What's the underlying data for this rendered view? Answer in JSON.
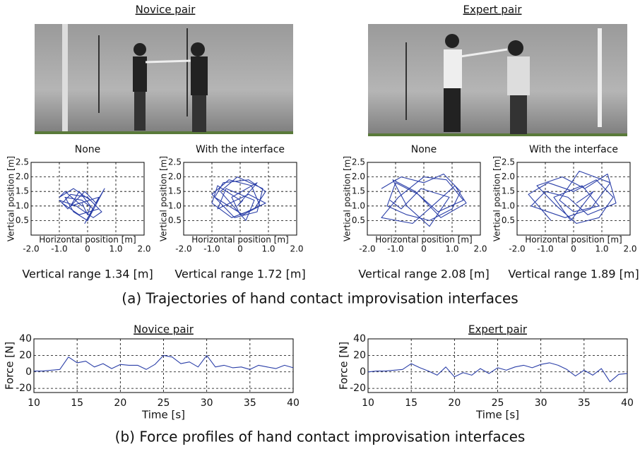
{
  "figure": {
    "photos": [
      {
        "title": "Novice pair"
      },
      {
        "title": "Expert pair"
      }
    ],
    "caption_a": "(a) Trajectories of hand contact improvisation interfaces",
    "caption_b": "(b) Force profiles of hand contact improvisation interfaces"
  },
  "chart_data": [
    {
      "type": "line",
      "title": "None",
      "xlabel": "Horizontal position [m]",
      "ylabel": "Vertical position [m]",
      "note": "Vertical range 1.34 [m]",
      "xlim": [
        -2,
        2
      ],
      "ylim": [
        0,
        2.5
      ],
      "grid": true,
      "xticks": [
        {
          "value": -2,
          "label": "-2.0"
        },
        {
          "value": -1,
          "label": "-1.0"
        },
        0,
        {
          "value": 1,
          "label": "1.0"
        },
        {
          "value": 2,
          "label": "2.0"
        }
      ],
      "yticks": [
        0.5,
        {
          "value": 1,
          "label": "1.0"
        },
        1.5,
        {
          "value": 2,
          "label": "2.0"
        },
        2.5
      ],
      "x": [
        -0.2,
        -0.8,
        -1.0,
        -0.5,
        0.1,
        0.4,
        -0.3,
        -0.9,
        -0.6,
        0.0,
        0.5,
        0.2,
        -0.4,
        -1.0,
        -0.7,
        -0.1,
        0.3,
        0.6,
        0.0,
        -0.5,
        -0.8,
        -0.2,
        0.2,
        -0.1,
        0.4,
        -0.6,
        -0.3,
        0.1,
        0.0,
        -0.2
      ],
      "series": [
        {
          "color": "#2b3fa8",
          "values": [
            1.0,
            1.5,
            1.3,
            1.6,
            1.2,
            0.9,
            0.7,
            1.1,
            1.4,
            1.3,
            0.8,
            0.6,
            1.0,
            1.2,
            0.9,
            1.5,
            1.1,
            1.6,
            0.5,
            0.8,
            1.3,
            1.2,
            0.9,
            0.4,
            1.3,
            1.0,
            1.5,
            1.0,
            0.7,
            1.1
          ]
        }
      ]
    },
    {
      "type": "line",
      "title": "With the interface",
      "xlabel": "Horizontal position [m]",
      "ylabel": "Vertical position [m]",
      "note": "Vertical range 1.72 [m]",
      "xlim": [
        -2,
        2
      ],
      "ylim": [
        0,
        2.5
      ],
      "grid": true,
      "xticks": [
        {
          "value": -2,
          "label": "-2.0"
        },
        {
          "value": -1,
          "label": "-1.0"
        },
        0,
        {
          "value": 1,
          "label": "1.0"
        },
        {
          "value": 2,
          "label": "2.0"
        }
      ],
      "yticks": [
        0.5,
        {
          "value": 1,
          "label": "1.0"
        },
        1.5,
        {
          "value": 2,
          "label": "2.0"
        },
        2.5
      ],
      "x": [
        0.0,
        -0.8,
        -1.0,
        -0.3,
        0.5,
        0.9,
        0.3,
        -0.6,
        -0.9,
        0.1,
        0.7,
        0.4,
        -0.4,
        -1.0,
        -0.2,
        0.6,
        0.8,
        -0.1,
        -0.7,
        0.2,
        0.5,
        -0.5,
        -0.8,
        0.3,
        0.9,
        0.0,
        -0.3,
        0.6,
        -0.1,
        0.1
      ],
      "series": [
        {
          "color": "#2b3fa8",
          "values": [
            1.2,
            1.7,
            1.1,
            0.6,
            0.9,
            1.5,
            1.9,
            1.8,
            1.3,
            0.7,
            1.0,
            1.7,
            1.9,
            1.4,
            0.6,
            0.8,
            1.6,
            2.0,
            1.5,
            0.5,
            1.2,
            1.6,
            0.9,
            1.4,
            1.1,
            0.7,
            1.3,
            1.8,
            1.0,
            1.2
          ]
        }
      ]
    },
    {
      "type": "line",
      "title": "None",
      "xlabel": "Horizontal position [m]",
      "ylabel": "Vertical position [m]",
      "note": "Vertical range 2.08 [m]",
      "xlim": [
        -2,
        2
      ],
      "ylim": [
        0,
        2.5
      ],
      "grid": true,
      "xticks": [
        {
          "value": -2,
          "label": "-2.0"
        },
        {
          "value": -1,
          "label": "-1.0"
        },
        0,
        {
          "value": 1,
          "label": "1.0"
        },
        {
          "value": 2,
          "label": "2.0"
        }
      ],
      "yticks": [
        0.5,
        {
          "value": 1,
          "label": "1.0"
        },
        1.5,
        {
          "value": 2,
          "label": "2.0"
        },
        2.5
      ],
      "x": [
        -1.5,
        -0.8,
        0.0,
        0.7,
        1.3,
        1.0,
        0.2,
        -0.6,
        -1.3,
        -1.0,
        -0.2,
        0.5,
        1.4,
        0.8,
        0.0,
        -0.9,
        -1.5,
        -0.4,
        0.3,
        1.1,
        1.5,
        0.6,
        -0.3,
        -1.1,
        -0.6,
        0.2,
        0.9,
        -0.1,
        -0.8,
        -1.2
      ],
      "series": [
        {
          "color": "#2b3fa8",
          "values": [
            1.6,
            2.0,
            1.8,
            2.1,
            1.5,
            0.9,
            0.5,
            0.7,
            1.0,
            1.8,
            1.4,
            0.8,
            1.2,
            1.9,
            2.0,
            1.3,
            0.6,
            0.4,
            1.0,
            1.7,
            1.1,
            0.6,
            1.5,
            1.9,
            1.0,
            0.3,
            1.3,
            1.6,
            0.9,
            1.2
          ]
        }
      ]
    },
    {
      "type": "line",
      "title": "With the interface",
      "xlabel": "Horizontal position [m]",
      "ylabel": "Vertical position [m]",
      "note": "Vertical range 1.89 [m]",
      "xlim": [
        -2,
        2
      ],
      "ylim": [
        0,
        2.5
      ],
      "grid": true,
      "xticks": [
        {
          "value": -2,
          "label": "-2.0"
        },
        {
          "value": -1,
          "label": "-1.0"
        },
        0,
        {
          "value": 1,
          "label": "1.0"
        },
        {
          "value": 2,
          "label": "2.0"
        }
      ],
      "yticks": [
        0.5,
        {
          "value": 1,
          "label": "1.0"
        },
        1.5,
        {
          "value": 2,
          "label": "2.0"
        },
        2.5
      ],
      "x": [
        -0.8,
        -1.6,
        -0.9,
        0.0,
        0.8,
        1.4,
        0.9,
        0.1,
        -0.6,
        -1.3,
        -0.4,
        0.4,
        1.2,
        1.5,
        0.5,
        -0.2,
        -1.0,
        -1.5,
        -0.3,
        0.6,
        1.3,
        0.2,
        -0.5,
        0.0,
        0.9,
        0.3,
        -0.7,
        -0.1,
        0.7,
        0.1
      ],
      "series": [
        {
          "color": "#2b3fa8",
          "values": [
            0.5,
            1.4,
            1.8,
            1.5,
            1.9,
            1.3,
            0.6,
            0.4,
            1.0,
            1.7,
            2.0,
            1.6,
            2.1,
            1.1,
            0.7,
            1.3,
            1.5,
            1.0,
            0.6,
            0.9,
            1.8,
            2.2,
            1.2,
            0.8,
            1.0,
            1.7,
            1.3,
            0.5,
            1.5,
            1.1
          ]
        }
      ]
    },
    {
      "type": "line",
      "title": "Novice pair",
      "xlabel": "Time [s]",
      "ylabel": "Force [N]",
      "xlim": [
        10,
        40
      ],
      "ylim": [
        -25,
        40
      ],
      "grid": true,
      "xticks": [
        10,
        15,
        20,
        25,
        30,
        35,
        40
      ],
      "yticks": [
        -20,
        0,
        20,
        40
      ],
      "x": [
        10,
        11,
        12,
        13,
        14,
        15,
        16,
        17,
        18,
        19,
        20,
        21,
        22,
        23,
        24,
        25,
        26,
        27,
        28,
        29,
        30,
        31,
        32,
        33,
        34,
        35,
        36,
        37,
        38,
        39,
        40
      ],
      "series": [
        {
          "color": "#2b3fa8",
          "values": [
            1,
            1,
            2,
            3,
            18,
            11,
            13,
            6,
            10,
            4,
            9,
            8,
            8,
            3,
            9,
            20,
            18,
            10,
            12,
            6,
            20,
            6,
            8,
            5,
            6,
            3,
            8,
            6,
            4,
            8,
            5
          ]
        }
      ]
    },
    {
      "type": "line",
      "title": "Expert pair",
      "xlabel": "Time [s]",
      "ylabel": "Force [N]",
      "xlim": [
        10,
        40
      ],
      "ylim": [
        -25,
        40
      ],
      "grid": true,
      "xticks": [
        10,
        15,
        20,
        25,
        30,
        35,
        40
      ],
      "yticks": [
        -20,
        0,
        20,
        40
      ],
      "x": [
        10,
        11,
        12,
        13,
        14,
        15,
        16,
        17,
        18,
        19,
        20,
        21,
        22,
        23,
        24,
        25,
        26,
        27,
        28,
        29,
        30,
        31,
        32,
        33,
        34,
        35,
        36,
        37,
        38,
        39,
        40
      ],
      "series": [
        {
          "color": "#2b3fa8",
          "values": [
            0,
            1,
            1,
            2,
            3,
            10,
            5,
            1,
            -4,
            6,
            -6,
            -1,
            -4,
            4,
            -2,
            5,
            2,
            6,
            8,
            5,
            9,
            11,
            8,
            3,
            -5,
            2,
            -4,
            4,
            -12,
            -3,
            -2
          ]
        }
      ]
    }
  ]
}
